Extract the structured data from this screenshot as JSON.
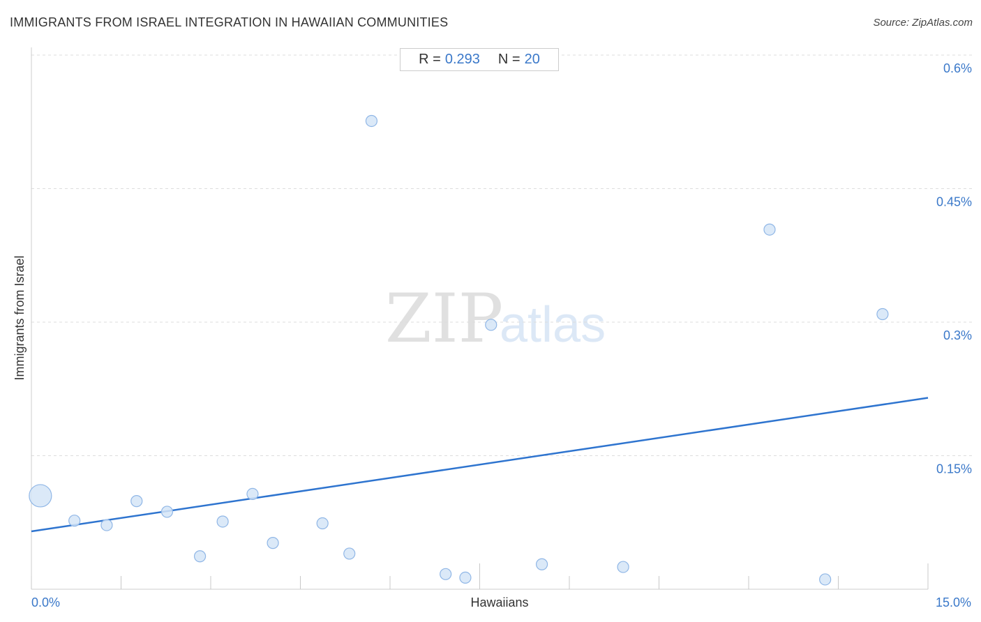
{
  "title": "IMMIGRANTS FROM ISRAEL INTEGRATION IN HAWAIIAN COMMUNITIES",
  "source": "Source: ZipAtlas.com",
  "stats": {
    "r_label": "R =",
    "r_value": "0.293",
    "n_label": "N =",
    "n_value": "20"
  },
  "watermark": {
    "part1": "ZIP",
    "part2": "atlas"
  },
  "colors": {
    "accent": "#3a78c9",
    "point_fill": "#d5e5f7",
    "point_stroke": "#8fb6e6",
    "line": "#2e74cf",
    "grid": "#dddddd"
  },
  "chart_data": {
    "type": "scatter",
    "title": "IMMIGRANTS FROM ISRAEL INTEGRATION IN HAWAIIAN COMMUNITIES",
    "xlabel": "Hawaiians",
    "ylabel": "Immigrants from Israel",
    "xlim": [
      0,
      15
    ],
    "ylim": [
      0,
      0.6
    ],
    "x_tick_labels": [
      {
        "value": 0,
        "label": "0.0%"
      },
      {
        "value": 15,
        "label": "15.0%"
      }
    ],
    "y_tick_labels": [
      {
        "value": 0.15,
        "label": "0.15%"
      },
      {
        "value": 0.3,
        "label": "0.3%"
      },
      {
        "value": 0.45,
        "label": "0.45%"
      },
      {
        "value": 0.6,
        "label": "0.6%"
      }
    ],
    "grid": "horizontal dashed",
    "points": [
      {
        "x": 0.15,
        "y": 0.105,
        "size": "large"
      },
      {
        "x": 0.72,
        "y": 0.077
      },
      {
        "x": 1.26,
        "y": 0.072
      },
      {
        "x": 1.76,
        "y": 0.099
      },
      {
        "x": 2.27,
        "y": 0.087
      },
      {
        "x": 2.82,
        "y": 0.037
      },
      {
        "x": 3.2,
        "y": 0.076
      },
      {
        "x": 3.7,
        "y": 0.107
      },
      {
        "x": 4.04,
        "y": 0.052
      },
      {
        "x": 4.87,
        "y": 0.074
      },
      {
        "x": 5.32,
        "y": 0.04
      },
      {
        "x": 5.69,
        "y": 0.526
      },
      {
        "x": 6.93,
        "y": 0.017
      },
      {
        "x": 7.26,
        "y": 0.013
      },
      {
        "x": 7.69,
        "y": 0.297
      },
      {
        "x": 8.54,
        "y": 0.028
      },
      {
        "x": 9.9,
        "y": 0.025
      },
      {
        "x": 12.35,
        "y": 0.404
      },
      {
        "x": 13.28,
        "y": 0.011
      },
      {
        "x": 14.24,
        "y": 0.309
      }
    ],
    "trendline": {
      "x": [
        0,
        15
      ],
      "y": [
        0.065,
        0.215
      ]
    }
  }
}
